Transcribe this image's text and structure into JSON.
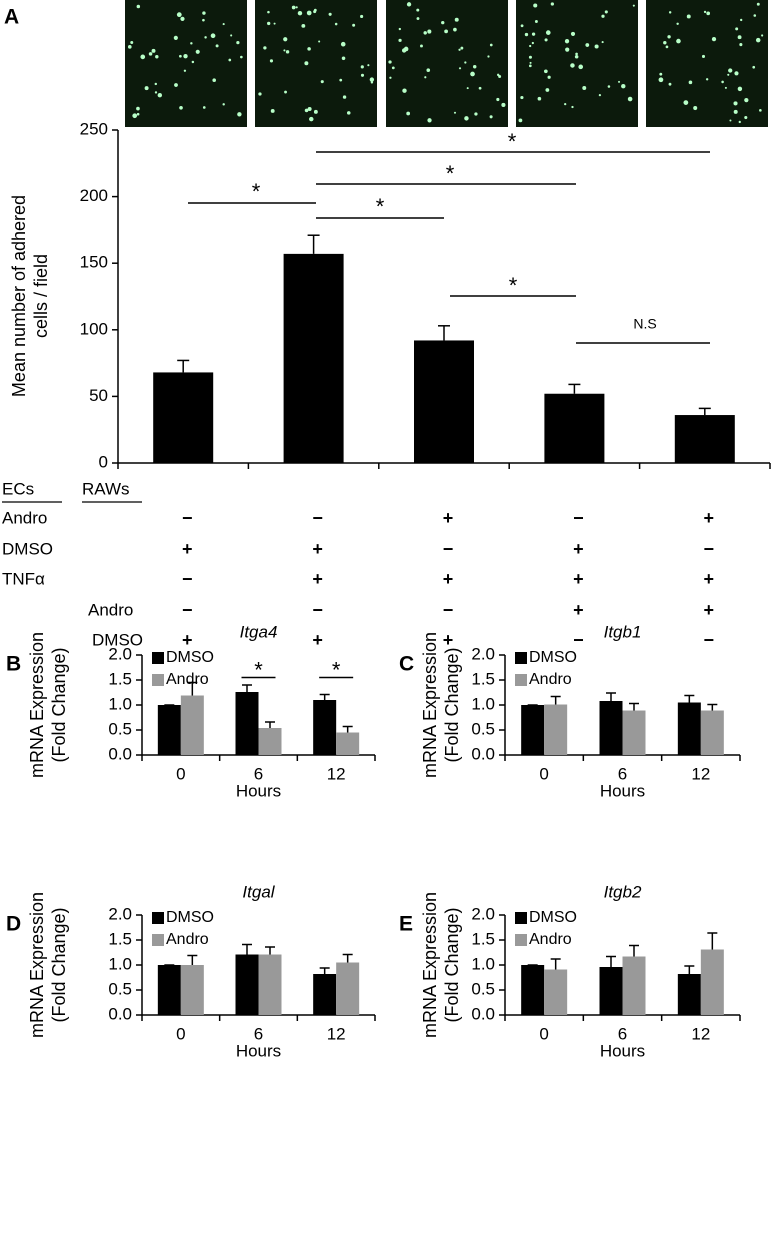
{
  "chart_data": [
    {
      "type": "bar",
      "panel": "A",
      "ylabel": [
        "Mean number of adhered",
        "cells / field"
      ],
      "values": [
        68,
        157,
        92,
        52,
        36
      ],
      "errors": [
        9,
        14,
        11,
        7,
        5
      ],
      "color": "#000000",
      "ylim": [
        0,
        250
      ],
      "yticks": [
        0,
        50,
        100,
        150,
        200,
        250
      ],
      "annotations": [
        "*",
        "*",
        "*",
        "*",
        "*",
        "N.S"
      ],
      "conditions": {
        "groups": [
          "ECs",
          "RAWs"
        ],
        "rows": [
          {
            "label": "Andro",
            "signs": [
              "−",
              "−",
              "+",
              "−",
              "+"
            ]
          },
          {
            "label": "DMSO",
            "signs": [
              "+",
              "+",
              "−",
              "+",
              "−"
            ]
          },
          {
            "label": "TNFα",
            "signs": [
              "−",
              "+",
              "+",
              "+",
              "+"
            ]
          },
          {
            "label": "Andro",
            "signs": [
              "−",
              "−",
              "−",
              "+",
              "+"
            ]
          },
          {
            "label": "DMSO",
            "signs": [
              "+",
              "+",
              "+",
              "−",
              "−"
            ]
          }
        ]
      }
    },
    {
      "type": "grouped-bar",
      "panel": "B",
      "title": "Itga4",
      "categories": [
        "0",
        "6",
        "12"
      ],
      "xlabel": "Hours",
      "ylabel": [
        "mRNA Expression",
        "(Fold Change)"
      ],
      "series": [
        {
          "name": "DMSO",
          "color": "#000000",
          "values": [
            1.0,
            1.26,
            1.1
          ],
          "errors": [
            0,
            0.14,
            0.11
          ]
        },
        {
          "name": "Andro",
          "color": "#999999",
          "values": [
            1.19,
            0.54,
            0.45
          ],
          "errors": [
            0.26,
            0.12,
            0.12
          ]
        }
      ],
      "ylim": [
        0,
        2
      ],
      "yticks": [
        {
          "value": 0,
          "label": "0.0"
        },
        {
          "value": 0.5,
          "label": "0.5"
        },
        {
          "value": 1,
          "label": "1.0"
        },
        {
          "value": 1.5,
          "label": "1.5"
        },
        {
          "value": 2,
          "label": "2.0"
        }
      ],
      "annotations": [
        "*",
        "*"
      ]
    },
    {
      "type": "grouped-bar",
      "panel": "C",
      "title": "Itgb1",
      "categories": [
        "0",
        "6",
        "12"
      ],
      "xlabel": "Hours",
      "ylabel": [
        "mRNA Expression",
        "(Fold Change)"
      ],
      "series": [
        {
          "name": "DMSO",
          "color": "#000000",
          "values": [
            1.0,
            1.08,
            1.05
          ],
          "errors": [
            0,
            0.16,
            0.14
          ]
        },
        {
          "name": "Andro",
          "color": "#999999",
          "values": [
            1.01,
            0.89,
            0.89
          ],
          "errors": [
            0.16,
            0.14,
            0.12
          ]
        }
      ],
      "ylim": [
        0,
        2
      ],
      "yticks": [
        {
          "value": 0,
          "label": "0.0"
        },
        {
          "value": 0.5,
          "label": "0.5"
        },
        {
          "value": 1,
          "label": "1.0"
        },
        {
          "value": 1.5,
          "label": "1.5"
        },
        {
          "value": 2,
          "label": "2.0"
        }
      ]
    },
    {
      "type": "grouped-bar",
      "panel": "D",
      "title": "Itgal",
      "categories": [
        "0",
        "6",
        "12"
      ],
      "xlabel": "Hours",
      "ylabel": [
        "mRNA Expression",
        "(Fold Change)"
      ],
      "series": [
        {
          "name": "DMSO",
          "color": "#000000",
          "values": [
            1.0,
            1.21,
            0.82
          ],
          "errors": [
            0,
            0.2,
            0.12
          ]
        },
        {
          "name": "Andro",
          "color": "#999999",
          "values": [
            1.0,
            1.21,
            1.05
          ],
          "errors": [
            0.19,
            0.15,
            0.16
          ]
        }
      ],
      "ylim": [
        0,
        2
      ],
      "yticks": [
        {
          "value": 0,
          "label": "0.0"
        },
        {
          "value": 0.5,
          "label": "0.5"
        },
        {
          "value": 1,
          "label": "1.0"
        },
        {
          "value": 1.5,
          "label": "1.5"
        },
        {
          "value": 2,
          "label": "2.0"
        }
      ]
    },
    {
      "type": "grouped-bar",
      "panel": "E",
      "title": "Itgb2",
      "categories": [
        "0",
        "6",
        "12"
      ],
      "xlabel": "Hours",
      "ylabel": [
        "mRNA Expression",
        "(Fold Change)"
      ],
      "series": [
        {
          "name": "DMSO",
          "color": "#000000",
          "values": [
            1.0,
            0.96,
            0.82
          ],
          "errors": [
            0,
            0.21,
            0.16
          ]
        },
        {
          "name": "Andro",
          "color": "#999999",
          "values": [
            0.91,
            1.17,
            1.31
          ],
          "errors": [
            0.21,
            0.22,
            0.33
          ]
        }
      ],
      "ylim": [
        0,
        2
      ],
      "yticks": [
        {
          "value": 0,
          "label": "0.0"
        },
        {
          "value": 0.5,
          "label": "0.5"
        },
        {
          "value": 1,
          "label": "1.0"
        },
        {
          "value": 1.5,
          "label": "1.5"
        },
        {
          "value": 2,
          "label": "2.0"
        }
      ]
    }
  ]
}
